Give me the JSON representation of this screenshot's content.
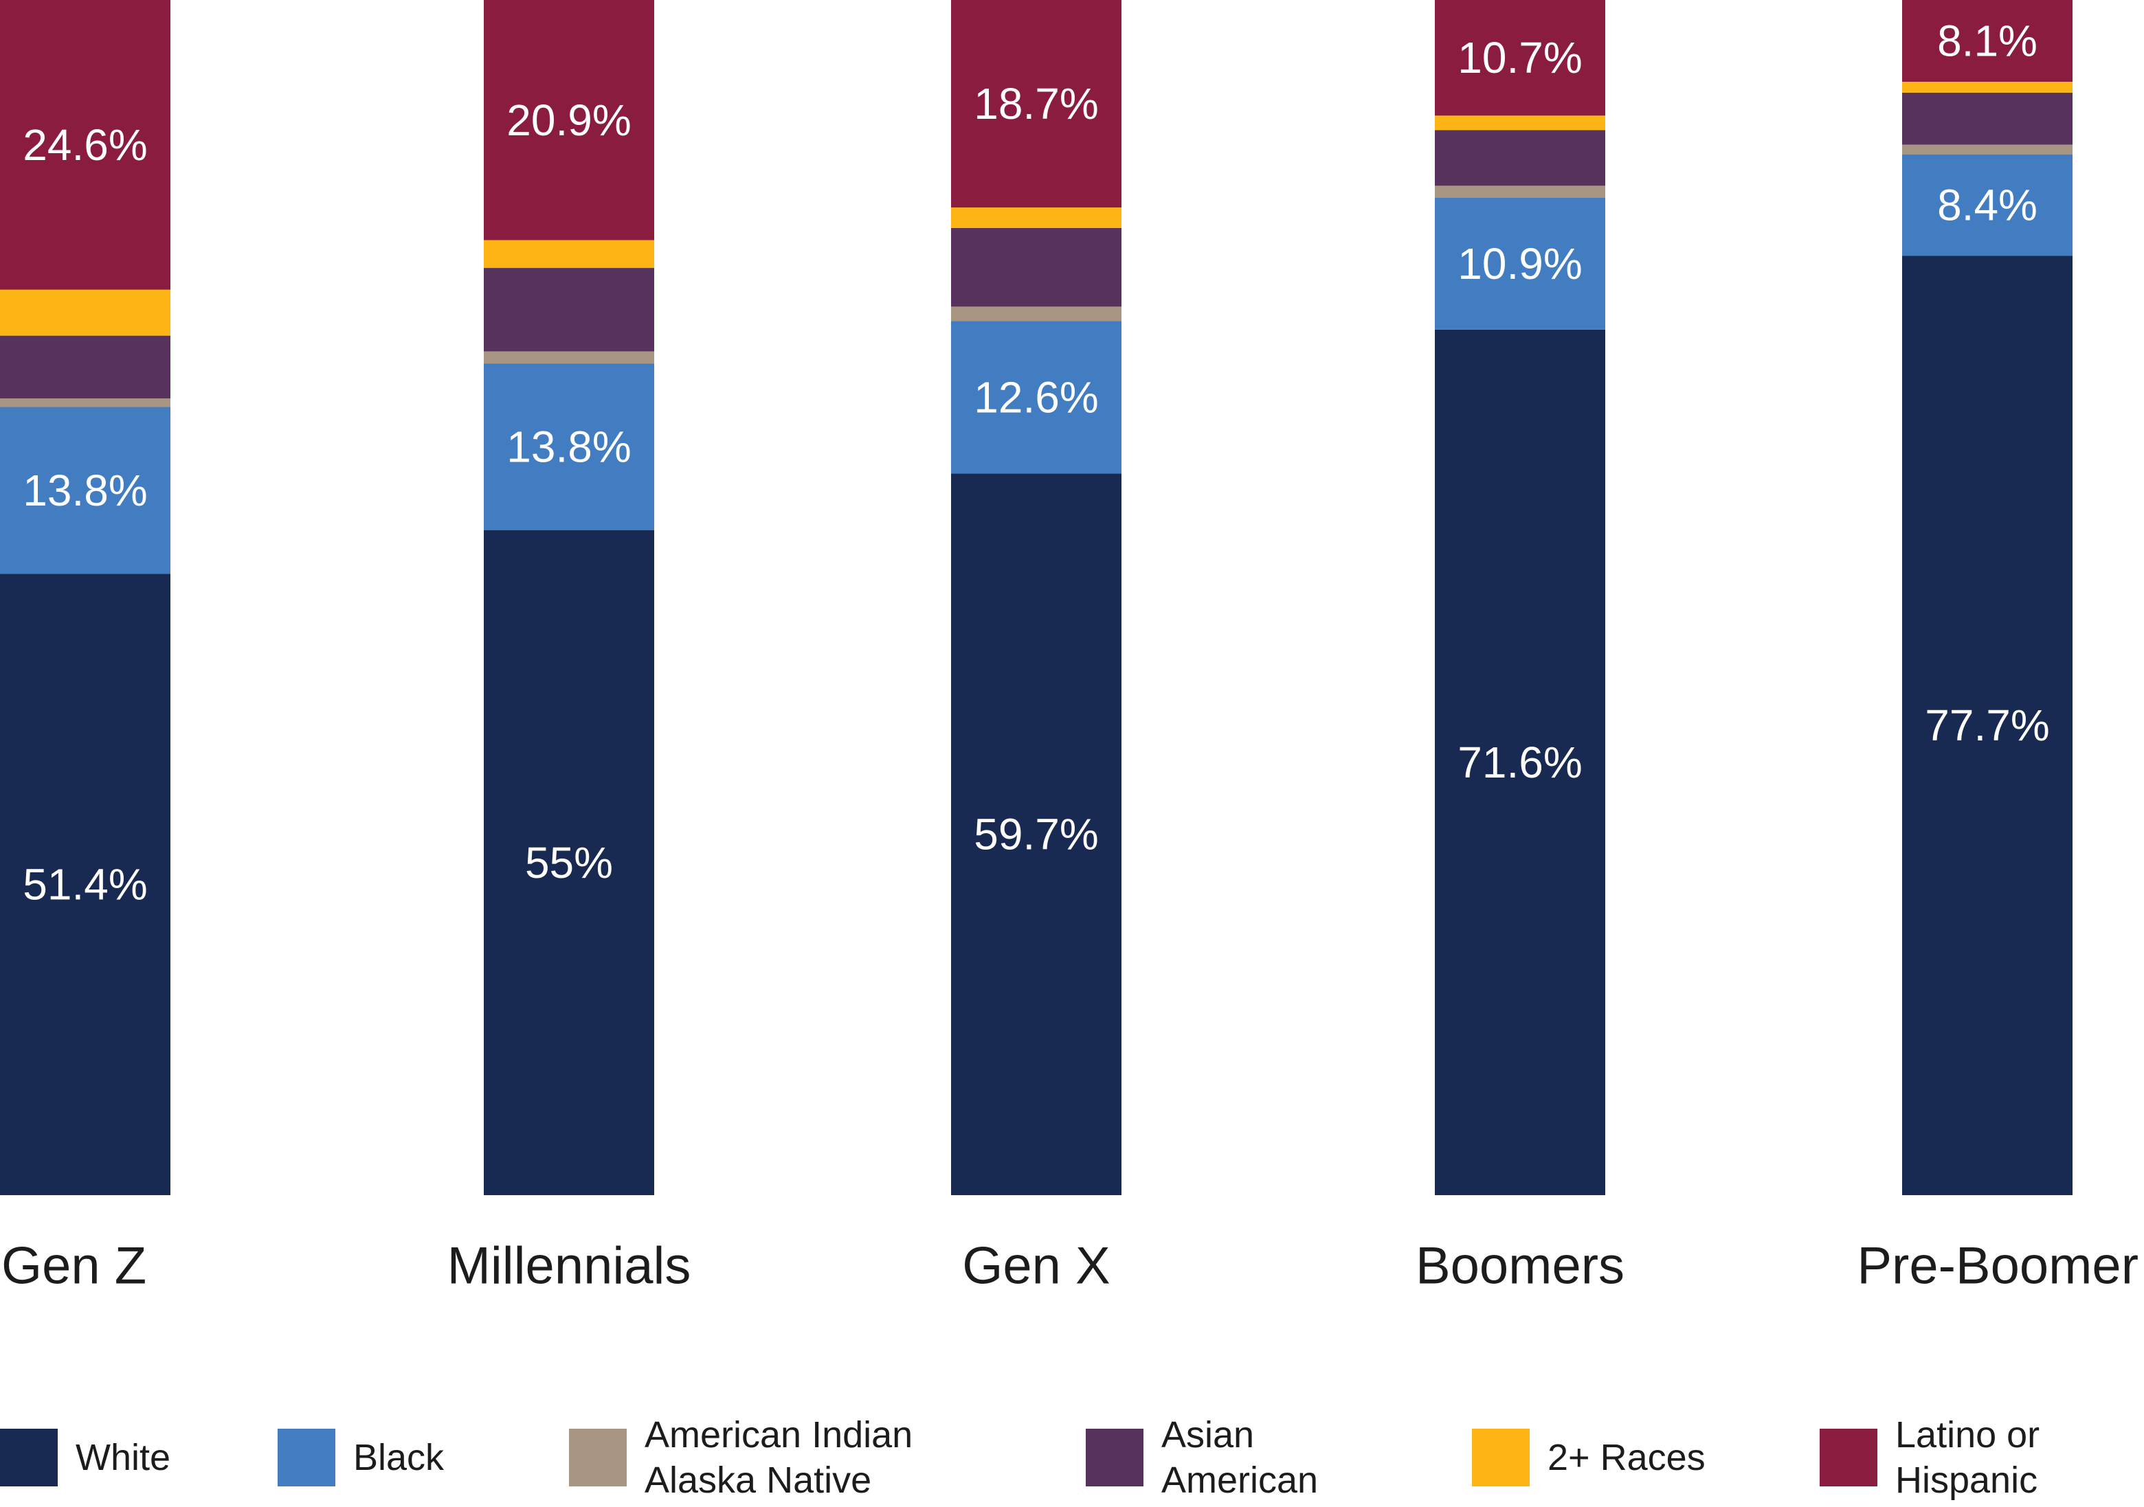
{
  "chart_data": {
    "type": "bar",
    "stacked": true,
    "normalized": true,
    "categories": [
      "Gen Z",
      "Millennials",
      "Gen X",
      "Boomers",
      "Pre-Boomer"
    ],
    "series": [
      {
        "name": "White",
        "color": "#182952",
        "values": [
          51.4,
          55,
          59.7,
          71.6,
          77.7
        ],
        "labels": [
          "51.4%",
          "55%",
          "59.7%",
          "71.6%",
          "77.7%"
        ]
      },
      {
        "name": "Black",
        "color": "#427DC2",
        "values": [
          13.8,
          13.8,
          12.6,
          10.9,
          8.4
        ],
        "labels": [
          "13.8%",
          "13.8%",
          "12.6%",
          "10.9%",
          "8.4%"
        ]
      },
      {
        "name": "American Indian Alaska Native",
        "color": "#A89682",
        "values": [
          0.7,
          1.0,
          1.2,
          1.0,
          0.8
        ],
        "labels": [
          "",
          "",
          "",
          "",
          ""
        ]
      },
      {
        "name": "Asian American",
        "color": "#56325D",
        "values": [
          5.2,
          6.9,
          6.5,
          4.6,
          4.3
        ],
        "labels": [
          "",
          "",
          "",
          "",
          ""
        ]
      },
      {
        "name": "2+ Races",
        "color": "#FDB515",
        "values": [
          3.8,
          2.3,
          1.7,
          1.2,
          0.9
        ],
        "labels": [
          "",
          "",
          "",
          "",
          ""
        ]
      },
      {
        "name": "Latino or Hispanic",
        "color": "#8A1D3F",
        "values": [
          24.6,
          20.9,
          18.7,
          10.7,
          8.1
        ],
        "labels": [
          "24.6%",
          "20.9%",
          "18.7%",
          "10.7%",
          "8.1%"
        ]
      }
    ],
    "ylim": [
      0,
      100
    ],
    "title": "",
    "xlabel": "",
    "ylabel": "",
    "legend_position": "bottom"
  },
  "legend": {
    "items": [
      {
        "label": "White",
        "color": "#182952"
      },
      {
        "label": "Black",
        "color": "#427DC2"
      },
      {
        "label": "American Indian\nAlaska Native",
        "color": "#A89682"
      },
      {
        "label": "Asian\nAmerican",
        "color": "#56325D"
      },
      {
        "label": "2+ Races",
        "color": "#FDB515"
      },
      {
        "label": "Latino or\nHispanic",
        "color": "#8A1D3F"
      }
    ]
  }
}
